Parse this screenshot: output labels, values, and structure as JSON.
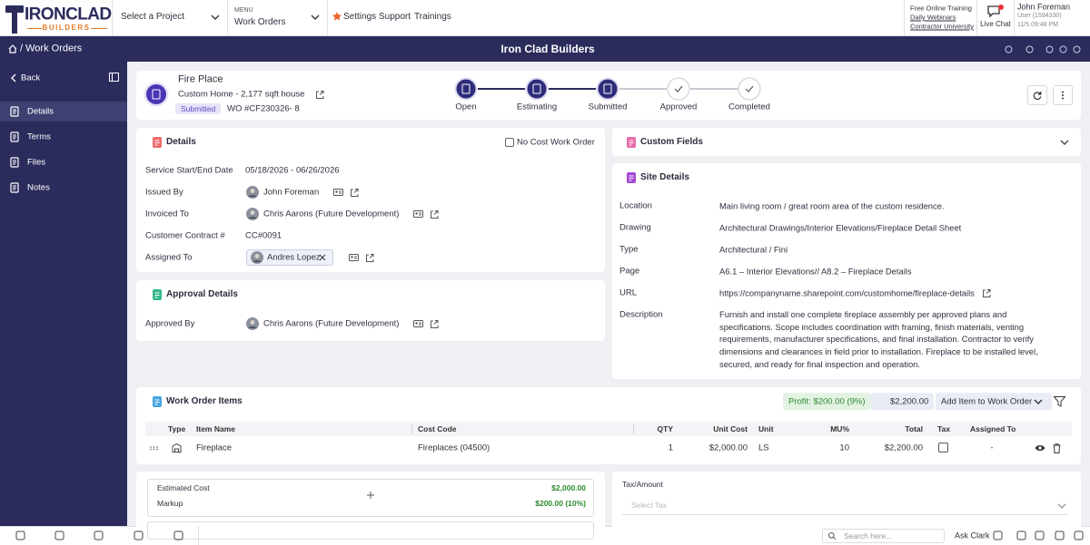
{
  "topbar": {
    "logo": "IRONCLAD",
    "logo_sub": "BUILDERS",
    "project": "Select a Project",
    "menu_label": "MENU",
    "menu_value": "Work Orders",
    "links": [
      "Settings",
      "Support",
      "Trainings"
    ],
    "training": {
      "title": "Free Online Training",
      "links": [
        "Daily Webinars",
        "Contractor University"
      ]
    },
    "live_chat": "Live Chat",
    "user": {
      "name": "John Foreman",
      "id": "User (1594330)",
      "time": "11/5 09:48 PM"
    }
  },
  "navbar": {
    "breadcrumb": "/ Work Orders",
    "company": "Iron Clad Builders"
  },
  "sidebar": {
    "back": "Back",
    "items": [
      "Details",
      "Terms",
      "Files",
      "Notes"
    ]
  },
  "header": {
    "title": "Fire Place",
    "project": "Custom Home - 2,177 sqft house",
    "status": "Submitted",
    "number": "WO #CF230326- 8",
    "steps": [
      "Open",
      "Estimating",
      "Submitted",
      "Approved",
      "Completed"
    ]
  },
  "details": {
    "title": "Details",
    "no_cost": "No Cost Work Order",
    "rows": [
      {
        "label": "Service Start/End Date",
        "value": "05/18/2026 - 06/26/2026"
      },
      {
        "label": "Issued By",
        "value": "John Foreman"
      },
      {
        "label": "Invoiced To",
        "value": "Chris Aarons (Future Development)"
      },
      {
        "label": "Customer Contract #",
        "value": "CC#0091"
      },
      {
        "label": "Assigned To",
        "value": "Andres Lopez"
      }
    ]
  },
  "approval": {
    "title": "Approval Details",
    "rows": [
      {
        "label": "Approved By",
        "value": "Chris Aarons (Future Development)"
      }
    ]
  },
  "custom_fields": {
    "title": "Custom Fields"
  },
  "site_details": {
    "title": "Site Details",
    "rows": [
      {
        "label": "Location",
        "value": "Main living room / great room area of the custom residence."
      },
      {
        "label": "Drawing",
        "value": "Architectural Drawings/Interior Elevations/Fireplace Detail Sheet"
      },
      {
        "label": "Type",
        "value": "Architectural / Fini"
      },
      {
        "label": "Page",
        "value": "A6.1 – Interior Elevations// A8.2 – Fireplace Details"
      },
      {
        "label": "URL",
        "value": "https://companyname.sharepoint.com/customhome/fireplace-details"
      },
      {
        "label": "Description",
        "value": "Furnish and install one complete fireplace assembly per approved plans and specifications. Scope includes coordination with framing, finish materials, venting requirements, manufacturer specifications, and final installation. Contractor to verify dimensions and clearances in field prior to installation. Fireplace to be installed level, secured, and ready for final inspection and operation."
      }
    ]
  },
  "items": {
    "title": "Work Order Items",
    "profit": "Profit: $200.00 (9%)",
    "total": "$2,200.00",
    "add": "Add Item to Work Order",
    "columns": [
      "Type",
      "Item Name",
      "Cost Code",
      "QTY",
      "Unit Cost",
      "Unit",
      "MU%",
      "Total",
      "Tax",
      "Assigned To"
    ],
    "rows": [
      {
        "item": "Fireplace",
        "cost_code": "Fireplaces (04500)",
        "qty": "1",
        "unit_cost": "$2,000.00",
        "unit": "LS",
        "mu": "10",
        "total": "$2,200.00",
        "assigned": "-"
      }
    ]
  },
  "summary": {
    "rows": [
      {
        "label": "Estimated Cost",
        "value": "$2,000.00"
      },
      {
        "label": "Markup",
        "value": "$200.00 (10%)"
      }
    ]
  },
  "tax": {
    "label": "Tax/Amount",
    "placeholder": "Select Tax"
  },
  "footer": {
    "search": "Search here...",
    "ask": "Ask Clark"
  }
}
